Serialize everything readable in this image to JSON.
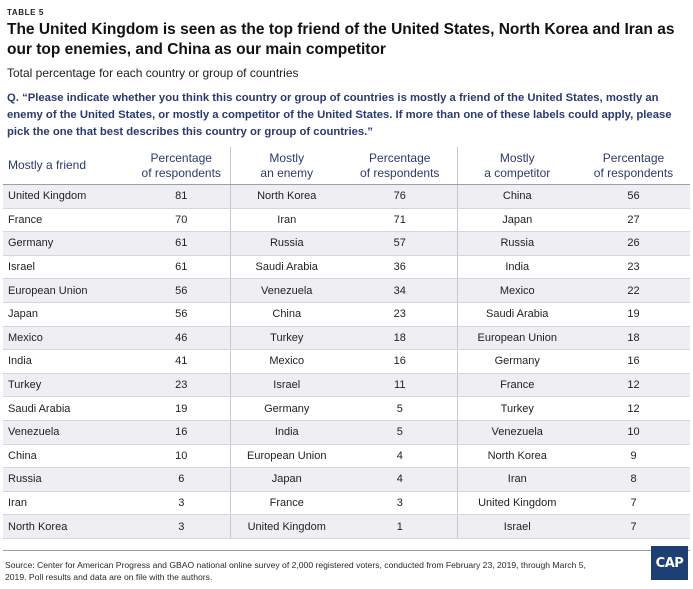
{
  "table_label": "TABLE 5",
  "headline": "The United Kingdom is seen as the top friend of the United States, North Korea and Iran as our top enemies, and China as our main competitor",
  "subtitle": "Total percentage for each country or group of countries",
  "question": "Q. “Please indicate whether you think this country or group of countries is mostly a friend of the United States, mostly an enemy of the United States, or mostly a competitor of the United States. If more than one of these labels could apply, please pick the one that best describes this country or group of countries.”",
  "headers": {
    "friend": [
      "Mostly a friend"
    ],
    "enemy": [
      "Mostly",
      "an enemy"
    ],
    "competitor": [
      "Mostly",
      "a competitor"
    ],
    "pct": [
      "Percentage",
      "of respondents"
    ]
  },
  "rows": [
    {
      "friend": "United Kingdom",
      "friend_pct": "81",
      "enemy": "North Korea",
      "enemy_pct": "76",
      "competitor": "China",
      "competitor_pct": "56"
    },
    {
      "friend": "France",
      "friend_pct": "70",
      "enemy": "Iran",
      "enemy_pct": "71",
      "competitor": "Japan",
      "competitor_pct": "27"
    },
    {
      "friend": "Germany",
      "friend_pct": "61",
      "enemy": "Russia",
      "enemy_pct": "57",
      "competitor": "Russia",
      "competitor_pct": "26"
    },
    {
      "friend": "Israel",
      "friend_pct": "61",
      "enemy": "Saudi Arabia",
      "enemy_pct": "36",
      "competitor": "India",
      "competitor_pct": "23"
    },
    {
      "friend": "European Union",
      "friend_pct": "56",
      "enemy": "Venezuela",
      "enemy_pct": "34",
      "competitor": "Mexico",
      "competitor_pct": "22"
    },
    {
      "friend": "Japan",
      "friend_pct": "56",
      "enemy": "China",
      "enemy_pct": "23",
      "competitor": "Saudi Arabia",
      "competitor_pct": "19"
    },
    {
      "friend": "Mexico",
      "friend_pct": "46",
      "enemy": "Turkey",
      "enemy_pct": "18",
      "competitor": "European Union",
      "competitor_pct": "18"
    },
    {
      "friend": "India",
      "friend_pct": "41",
      "enemy": "Mexico",
      "enemy_pct": "16",
      "competitor": "Germany",
      "competitor_pct": "16"
    },
    {
      "friend": "Turkey",
      "friend_pct": "23",
      "enemy": "Israel",
      "enemy_pct": "11",
      "competitor": "France",
      "competitor_pct": "12"
    },
    {
      "friend": "Saudi Arabia",
      "friend_pct": "19",
      "enemy": "Germany",
      "enemy_pct": "5",
      "competitor": "Turkey",
      "competitor_pct": "12"
    },
    {
      "friend": "Venezuela",
      "friend_pct": "16",
      "enemy": "India",
      "enemy_pct": "5",
      "competitor": "Venezuela",
      "competitor_pct": "10"
    },
    {
      "friend": "China",
      "friend_pct": "10",
      "enemy": "European Union",
      "enemy_pct": "4",
      "competitor": "North Korea",
      "competitor_pct": "9"
    },
    {
      "friend": "Russia",
      "friend_pct": "6",
      "enemy": "Japan",
      "enemy_pct": "4",
      "competitor": "Iran",
      "competitor_pct": "8"
    },
    {
      "friend": "Iran",
      "friend_pct": "3",
      "enemy": "France",
      "enemy_pct": "3",
      "competitor": "United Kingdom",
      "competitor_pct": "7"
    },
    {
      "friend": "North Korea",
      "friend_pct": "3",
      "enemy": "United Kingdom",
      "enemy_pct": "1",
      "competitor": "Israel",
      "competitor_pct": "7"
    }
  ],
  "source": "Source: Center for American Progress and GBAO national online survey of 2,000 registered voters, conducted from February 23, 2019, through March 5, 2019. Poll results and data are on file with the authors.",
  "logo_text": "CAP",
  "colors": {
    "accent": "#2b3a6e",
    "logo_bg": "#1e3f73",
    "row_alt": "#eeeef3"
  }
}
